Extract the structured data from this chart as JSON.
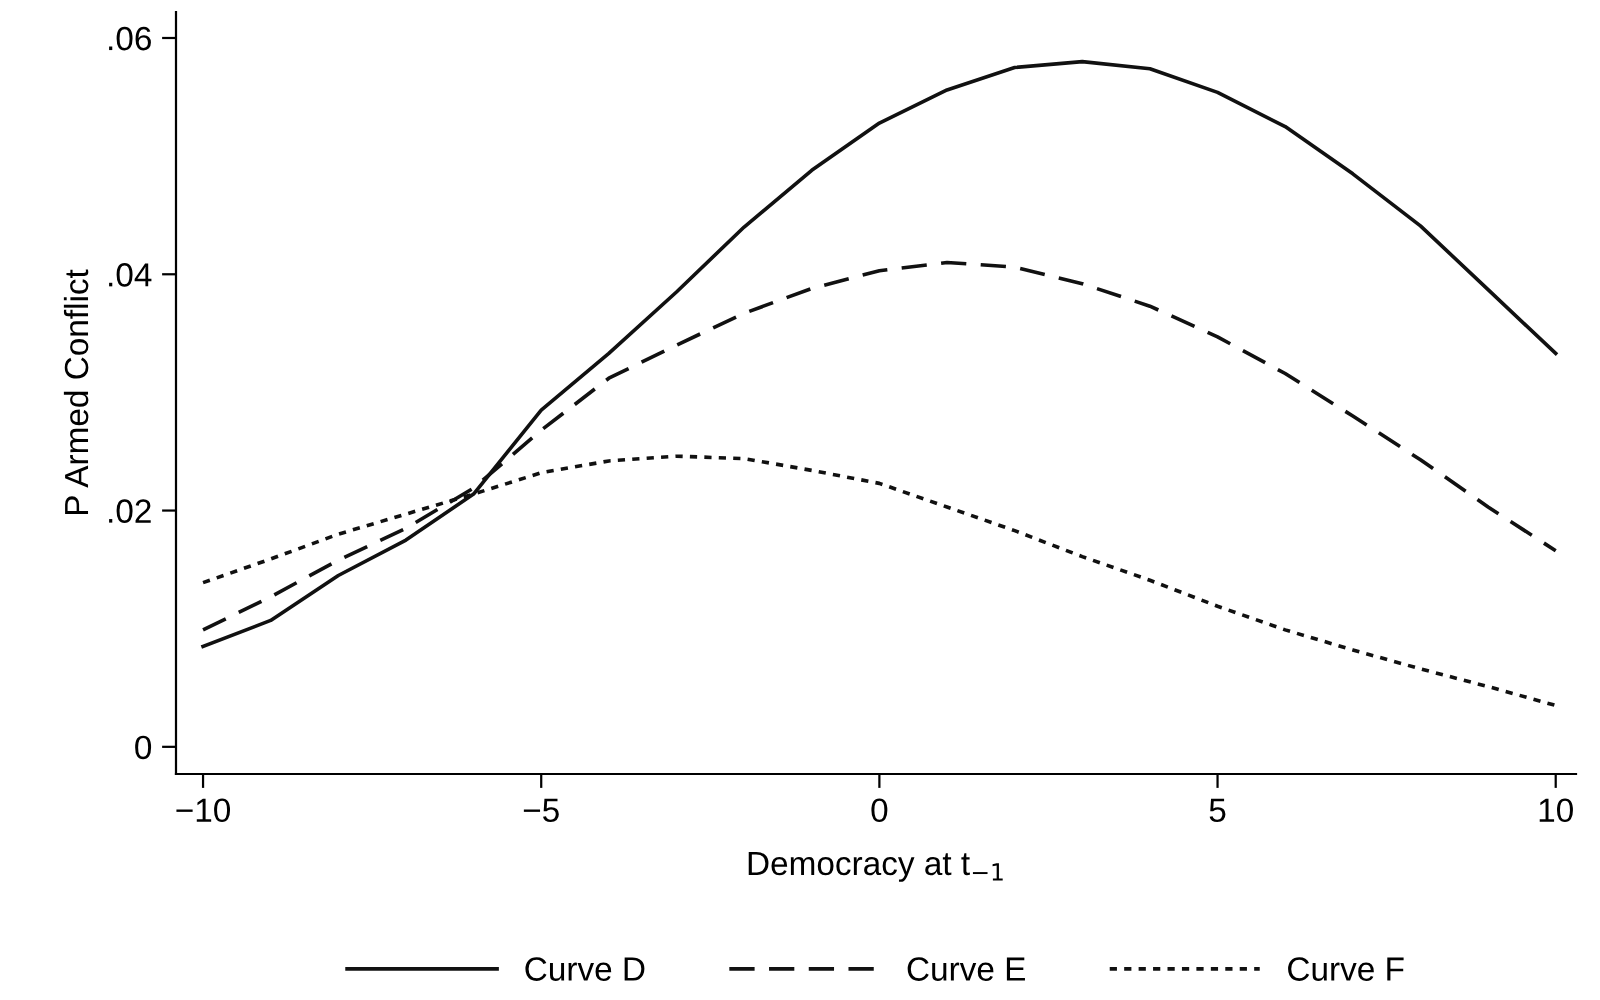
{
  "chart_data": {
    "type": "line",
    "xlabel": "Democracy at t$_{−1}$",
    "ylabel": "P Armed Conflict",
    "x": [
      -10,
      -9,
      -8,
      -7,
      -6,
      -5,
      -4,
      -3,
      -2,
      -1,
      0,
      1,
      2,
      3,
      4,
      5,
      6,
      7,
      8,
      9,
      10
    ],
    "series": [
      {
        "name": "Curve D",
        "color": "#111111",
        "line_style": "solid",
        "values": [
          0.0085,
          0.0107,
          0.0145,
          0.0175,
          0.0214,
          0.0285,
          0.0333,
          0.0385,
          0.044,
          0.0488,
          0.0528,
          0.0556,
          0.0575,
          0.058,
          0.0574,
          0.0554,
          0.0525,
          0.0485,
          0.0441,
          0.0387,
          0.0333
        ]
      },
      {
        "name": "Curve E",
        "color": "#111111",
        "line_style": "dashed",
        "values": [
          0.0099,
          0.0127,
          0.0158,
          0.0185,
          0.0219,
          0.0268,
          0.0312,
          0.034,
          0.0367,
          0.0388,
          0.0403,
          0.041,
          0.0406,
          0.0392,
          0.0373,
          0.0347,
          0.0316,
          0.028,
          0.0243,
          0.0203,
          0.0166
        ]
      },
      {
        "name": "Curve F",
        "color": "#111111",
        "line_style": "dotted",
        "values": [
          0.0139,
          0.0159,
          0.018,
          0.0197,
          0.0214,
          0.0232,
          0.0242,
          0.0246,
          0.0244,
          0.0234,
          0.0223,
          0.0203,
          0.0183,
          0.0161,
          0.0141,
          0.0119,
          0.0099,
          0.0082,
          0.0066,
          0.0051,
          0.0035
        ]
      }
    ],
    "xlim": [
      -10.4,
      10.3
    ],
    "ylim": [
      -0.0023,
      0.0622
    ],
    "xticks": [
      {
        "value": -10,
        "label": "−10"
      },
      {
        "value": -5,
        "label": "−5"
      },
      0,
      5,
      10
    ],
    "yticks": [
      0,
      {
        "value": 0.02,
        "label": ".02"
      },
      {
        "value": 0.04,
        "label": ".04"
      },
      {
        "value": 0.06,
        "label": ".06"
      }
    ],
    "grid": false,
    "legend": "bottom",
    "marker": "none"
  }
}
